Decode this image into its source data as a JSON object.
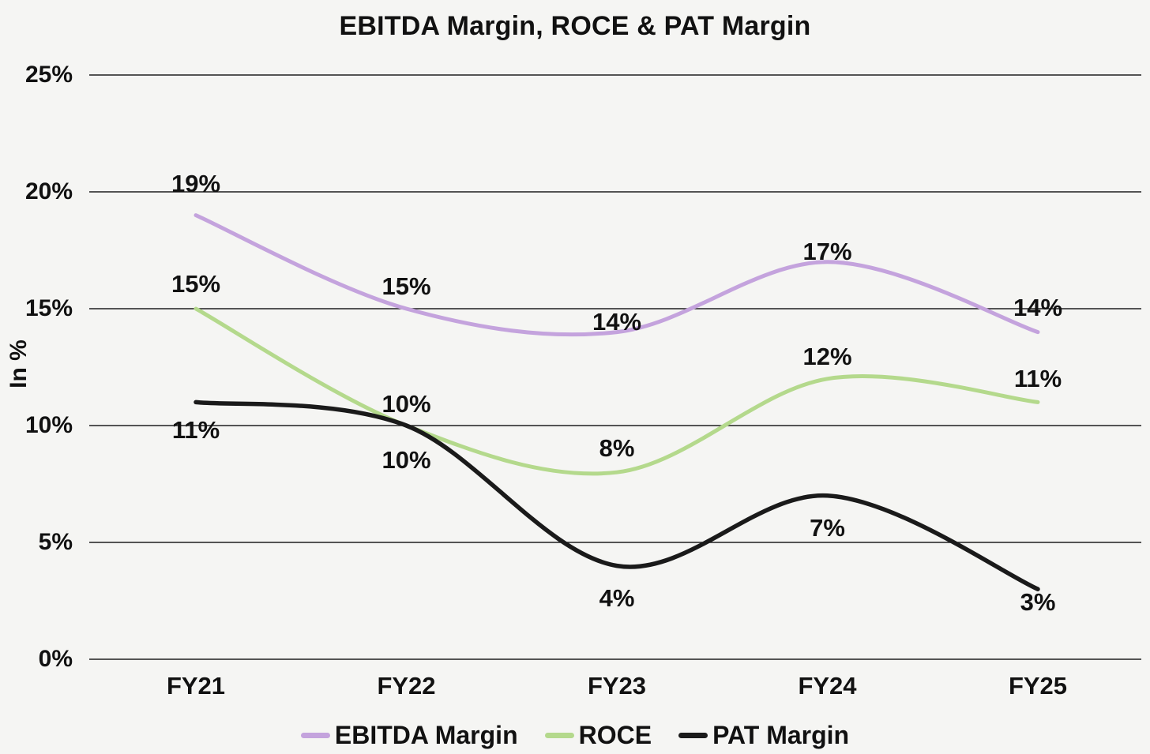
{
  "title": "EBITDA Margin, ROCE & PAT Margin",
  "y_axis_title": "In %",
  "chart_data": {
    "type": "line",
    "line_style": "smooth",
    "categories": [
      "FY21",
      "FY22",
      "FY23",
      "FY24",
      "FY25"
    ],
    "series": [
      {
        "name": "EBITDA Margin",
        "color": "#c4a3dd",
        "values": [
          19,
          15,
          14,
          17,
          14
        ],
        "point_labels": [
          "19%",
          "15%",
          "14%",
          "17%",
          "14%"
        ]
      },
      {
        "name": "ROCE",
        "color": "#b4d98c",
        "values": [
          15,
          10,
          8,
          12,
          11
        ],
        "point_labels": [
          "15%",
          "10%",
          "8%",
          "12%",
          "11%"
        ]
      },
      {
        "name": "PAT Margin",
        "color": "#1a1a1a",
        "values": [
          11,
          10,
          4,
          7,
          3
        ],
        "point_labels": [
          "11%",
          "10%",
          "4%",
          "7%",
          "3%"
        ]
      }
    ],
    "xlabel": "",
    "ylabel": "In %",
    "ylim": [
      0,
      25
    ],
    "y_ticks": [
      {
        "value": 25,
        "label": "25%"
      },
      {
        "value": 20,
        "label": "20%"
      },
      {
        "value": 15,
        "label": "15%"
      },
      {
        "value": 10,
        "label": "10%"
      },
      {
        "value": 5,
        "label": "5%"
      },
      {
        "value": 0,
        "label": "0%"
      }
    ],
    "grid": true,
    "legend_position": "bottom",
    "background_color": "#f5f5f3",
    "gridline_color": "#1f1f1f"
  }
}
